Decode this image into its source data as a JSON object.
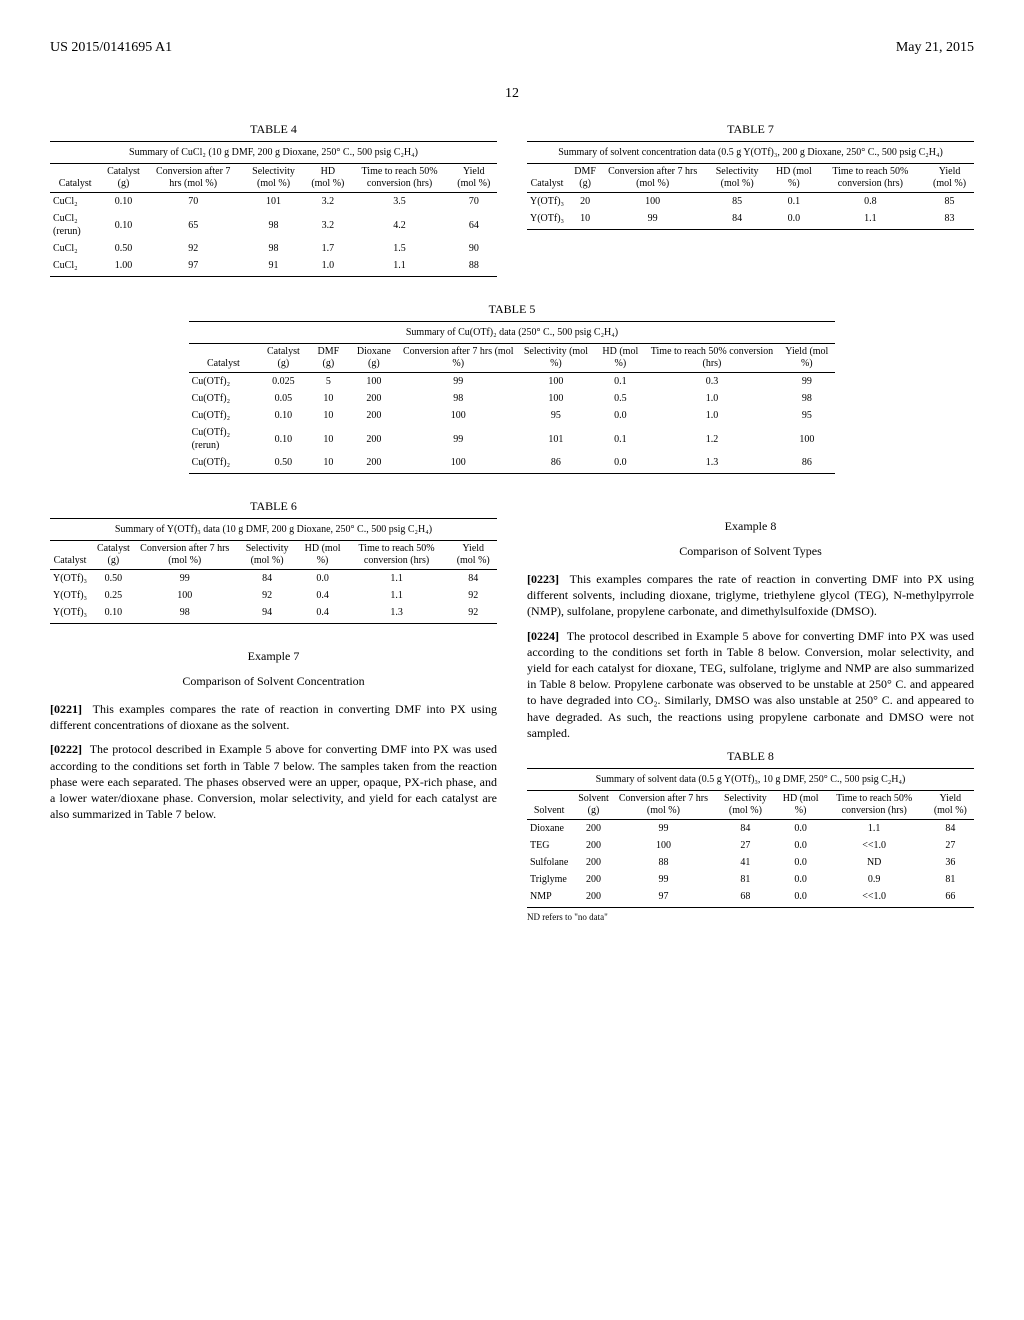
{
  "header": {
    "patent_no": "US 2015/0141695 A1",
    "date": "May 21, 2015",
    "page": "12"
  },
  "table4": {
    "label": "TABLE 4",
    "caption": "Summary of CuCl₂ (10 g DMF, 200 g Dioxane, 250° C., 500 psig C₂H₄)",
    "headers": [
      "Catalyst",
      "Catalyst (g)",
      "Conversion after 7 hrs (mol %)",
      "Selectivity (mol %)",
      "HD (mol %)",
      "Time to reach 50% conversion (hrs)",
      "Yield (mol %)"
    ],
    "rows": [
      [
        "CuCl₂",
        "0.10",
        "70",
        "101",
        "3.2",
        "3.5",
        "70"
      ],
      [
        "CuCl₂ (rerun)",
        "0.10",
        "65",
        "98",
        "3.2",
        "4.2",
        "64"
      ],
      [
        "CuCl₂",
        "0.50",
        "92",
        "98",
        "1.7",
        "1.5",
        "90"
      ],
      [
        "CuCl₂",
        "1.00",
        "97",
        "91",
        "1.0",
        "1.1",
        "88"
      ]
    ]
  },
  "table5": {
    "label": "TABLE 5",
    "caption": "Summary of Cu(OTf)₂ data (250° C., 500 psig C₂H₄)",
    "headers": [
      "Catalyst",
      "Catalyst (g)",
      "DMF (g)",
      "Dioxane (g)",
      "Conversion after 7 hrs (mol %)",
      "Selectivity (mol %)",
      "HD (mol %)",
      "Time to reach 50% conversion (hrs)",
      "Yield (mol %)"
    ],
    "rows": [
      [
        "Cu(OTf)₂",
        "0.025",
        "5",
        "100",
        "99",
        "100",
        "0.1",
        "0.3",
        "99"
      ],
      [
        "Cu(OTf)₂",
        "0.05",
        "10",
        "200",
        "98",
        "100",
        "0.5",
        "1.0",
        "98"
      ],
      [
        "Cu(OTf)₂",
        "0.10",
        "10",
        "200",
        "100",
        "95",
        "0.0",
        "1.0",
        "95"
      ],
      [
        "Cu(OTf)₂ (rerun)",
        "0.10",
        "10",
        "200",
        "99",
        "101",
        "0.1",
        "1.2",
        "100"
      ],
      [
        "Cu(OTf)₂",
        "0.50",
        "10",
        "200",
        "100",
        "86",
        "0.0",
        "1.3",
        "86"
      ]
    ]
  },
  "table6": {
    "label": "TABLE 6",
    "caption": "Summary of Y(OTf)₃ data (10 g DMF, 200 g Dioxane, 250° C., 500 psig C₂H₄)",
    "headers": [
      "Catalyst",
      "Catalyst (g)",
      "Conversion after 7 hrs (mol %)",
      "Selectivity (mol %)",
      "HD (mol %)",
      "Time to reach 50% conversion (hrs)",
      "Yield (mol %)"
    ],
    "rows": [
      [
        "Y(OTf)₃",
        "0.50",
        "99",
        "84",
        "0.0",
        "1.1",
        "84"
      ],
      [
        "Y(OTf)₃",
        "0.25",
        "100",
        "92",
        "0.4",
        "1.1",
        "92"
      ],
      [
        "Y(OTf)₃",
        "0.10",
        "98",
        "94",
        "0.4",
        "1.3",
        "92"
      ]
    ]
  },
  "table7": {
    "label": "TABLE 7",
    "caption": "Summary of solvent concentration data (0.5 g Y(OTf)₃, 200 g Dioxane, 250° C., 500 psig C₂H₄)",
    "headers": [
      "Catalyst",
      "DMF (g)",
      "Conversion after 7 hrs (mol %)",
      "Selectivity (mol %)",
      "HD (mol %)",
      "Time to reach 50% conversion (hrs)",
      "Yield (mol %)"
    ],
    "rows": [
      [
        "Y(OTf)₃",
        "20",
        "100",
        "85",
        "0.1",
        "0.8",
        "85"
      ],
      [
        "Y(OTf)₃",
        "10",
        "99",
        "84",
        "0.0",
        "1.1",
        "83"
      ]
    ]
  },
  "table8": {
    "label": "TABLE 8",
    "caption": "Summary of solvent data (0.5 g Y(OTf)₃, 10 g DMF, 250° C., 500 psig C₂H₄)",
    "headers": [
      "Solvent",
      "Solvent (g)",
      "Conversion after 7 hrs (mol %)",
      "Selectivity (mol %)",
      "HD (mol %)",
      "Time to reach 50% conversion (hrs)",
      "Yield (mol %)"
    ],
    "rows": [
      [
        "Dioxane",
        "200",
        "99",
        "84",
        "0.0",
        "1.1",
        "84"
      ],
      [
        "TEG",
        "200",
        "100",
        "27",
        "0.0",
        "<<1.0",
        "27"
      ],
      [
        "Sulfolane",
        "200",
        "88",
        "41",
        "0.0",
        "ND",
        "36"
      ],
      [
        "Triglyme",
        "200",
        "99",
        "81",
        "0.0",
        "0.9",
        "81"
      ],
      [
        "NMP",
        "200",
        "97",
        "68",
        "0.0",
        "<<1.0",
        "66"
      ]
    ],
    "footnote": "ND refers to \"no data\""
  },
  "example7": {
    "title": "Example 7",
    "subtitle": "Comparison of Solvent Concentration",
    "p1_num": "[0221]",
    "p1": "This examples compares the rate of reaction in converting DMF into PX using different concentrations of dioxane as the solvent.",
    "p2_num": "[0222]",
    "p2": "The protocol described in Example 5 above for converting DMF into PX was used according to the conditions set forth in Table 7 below. The samples taken from the reaction phase were each separated. The phases observed were an upper, opaque, PX-rich phase, and a lower water/dioxane phase. Conversion, molar selectivity, and yield for each catalyst are also summarized in Table 7 below."
  },
  "example8": {
    "title": "Example 8",
    "subtitle": "Comparison of Solvent Types",
    "p1_num": "[0223]",
    "p1": "This examples compares the rate of reaction in converting DMF into PX using different solvents, including dioxane, triglyme, triethylene glycol (TEG), N-methylpyrrole (NMP), sulfolane, propylene carbonate, and dimethylsulfoxide (DMSO).",
    "p2_num": "[0224]",
    "p2": "The protocol described in Example 5 above for converting DMF into PX was used according to the conditions set forth in Table 8 below. Conversion, molar selectivity, and yield for each catalyst for dioxane, TEG, sulfolane, triglyme and NMP are also summarized in Table 8 below. Propylene carbonate was observed to be unstable at 250° C. and appeared to have degraded into CO₂. Similarly, DMSO was also unstable at 250° C. and appeared to have degraded. As such, the reactions using propylene carbonate and DMSO were not sampled."
  }
}
